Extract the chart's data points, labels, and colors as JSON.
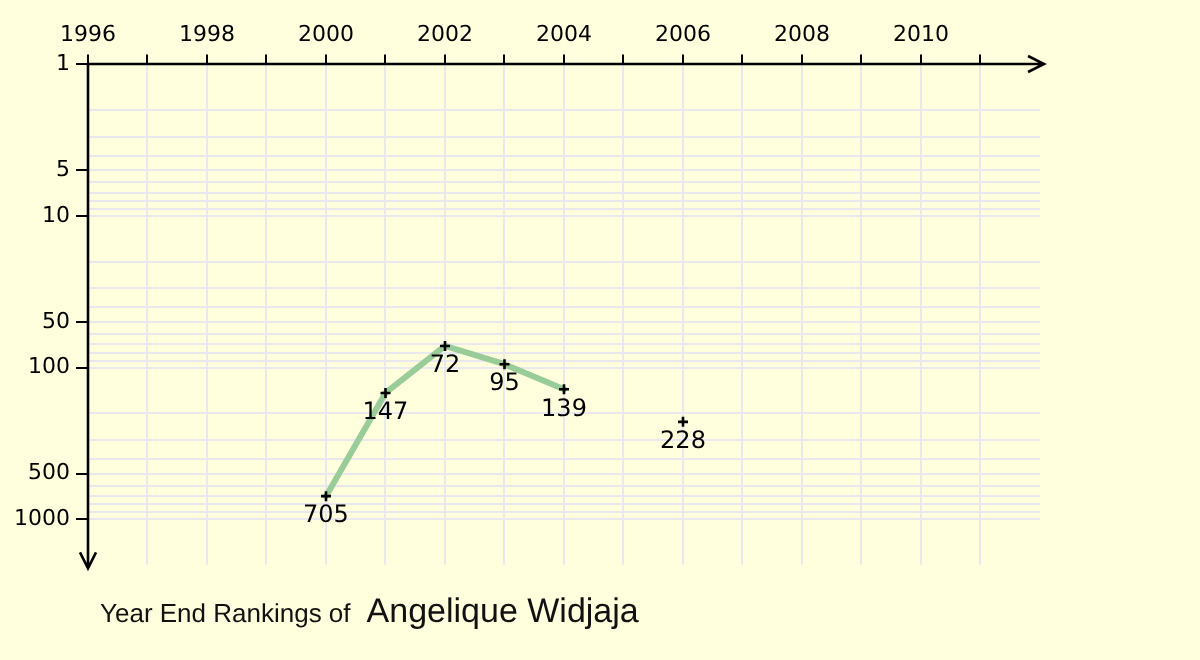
{
  "chart_data": {
    "type": "line",
    "title": "Year End Rankings of",
    "subtitle": "Angelique Widjaja",
    "x": [
      2000,
      2001,
      2002,
      2003,
      2004,
      2005,
      2006
    ],
    "series": [
      {
        "type": "line",
        "color": "#99cc99",
        "marker": "none",
        "values": [
          705,
          147,
          72,
          95,
          139,
          null,
          null
        ]
      },
      {
        "type": "scatter",
        "color": "#000000",
        "marker": "cross",
        "values": [
          705,
          147,
          72,
          95,
          139,
          null,
          228
        ],
        "value_labels": [
          "705",
          "147",
          "72",
          "95",
          "139",
          null,
          "228"
        ]
      }
    ],
    "xlim": [
      1996,
      2012
    ],
    "xticks": [
      1996,
      {
        "value": 1997,
        "label": null
      },
      1998,
      {
        "value": 1999,
        "label": null
      },
      2000,
      {
        "value": 2001,
        "label": null
      },
      2002,
      {
        "value": 2003,
        "label": null
      },
      2004,
      {
        "value": 2005,
        "label": null
      },
      2006,
      {
        "value": 2007,
        "label": null
      },
      2008,
      {
        "value": 2009,
        "label": null
      },
      2010,
      {
        "value": 2011,
        "label": null
      }
    ],
    "ylim": [
      2000,
      1
    ],
    "yticks": [
      1,
      {
        "value": 2,
        "label": null
      },
      {
        "value": 3,
        "label": null
      },
      {
        "value": 4,
        "label": null
      },
      5,
      {
        "value": 6,
        "label": null
      },
      {
        "value": 7,
        "label": null
      },
      {
        "value": 8,
        "label": null
      },
      {
        "value": 9,
        "label": null
      },
      10,
      {
        "value": 20,
        "label": null
      },
      {
        "value": 30,
        "label": null
      },
      {
        "value": 40,
        "label": null
      },
      50,
      {
        "value": 60,
        "label": null
      },
      {
        "value": 70,
        "label": null
      },
      {
        "value": 80,
        "label": null
      },
      {
        "value": 90,
        "label": null
      },
      100,
      {
        "value": 200,
        "label": null
      },
      {
        "value": 300,
        "label": null
      },
      {
        "value": 400,
        "label": null
      },
      500,
      {
        "value": 600,
        "label": null
      },
      {
        "value": 700,
        "label": null
      },
      {
        "value": 800,
        "label": null
      },
      {
        "value": 900,
        "label": null
      },
      1000
    ],
    "log": "y",
    "grid": true,
    "legend": false,
    "line_style": "solid"
  }
}
